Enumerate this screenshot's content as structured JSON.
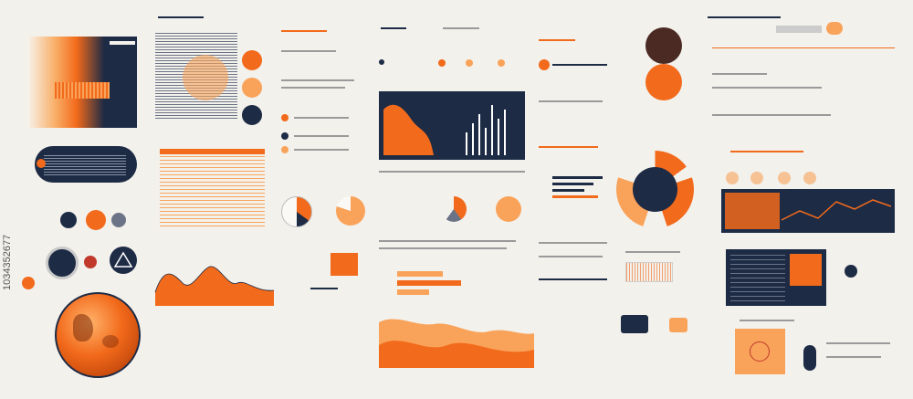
{
  "stock_id": "1034352677",
  "colors": {
    "accent": "#f26a1b",
    "navy": "#1d2b45",
    "light_orange": "#f9a35a"
  }
}
